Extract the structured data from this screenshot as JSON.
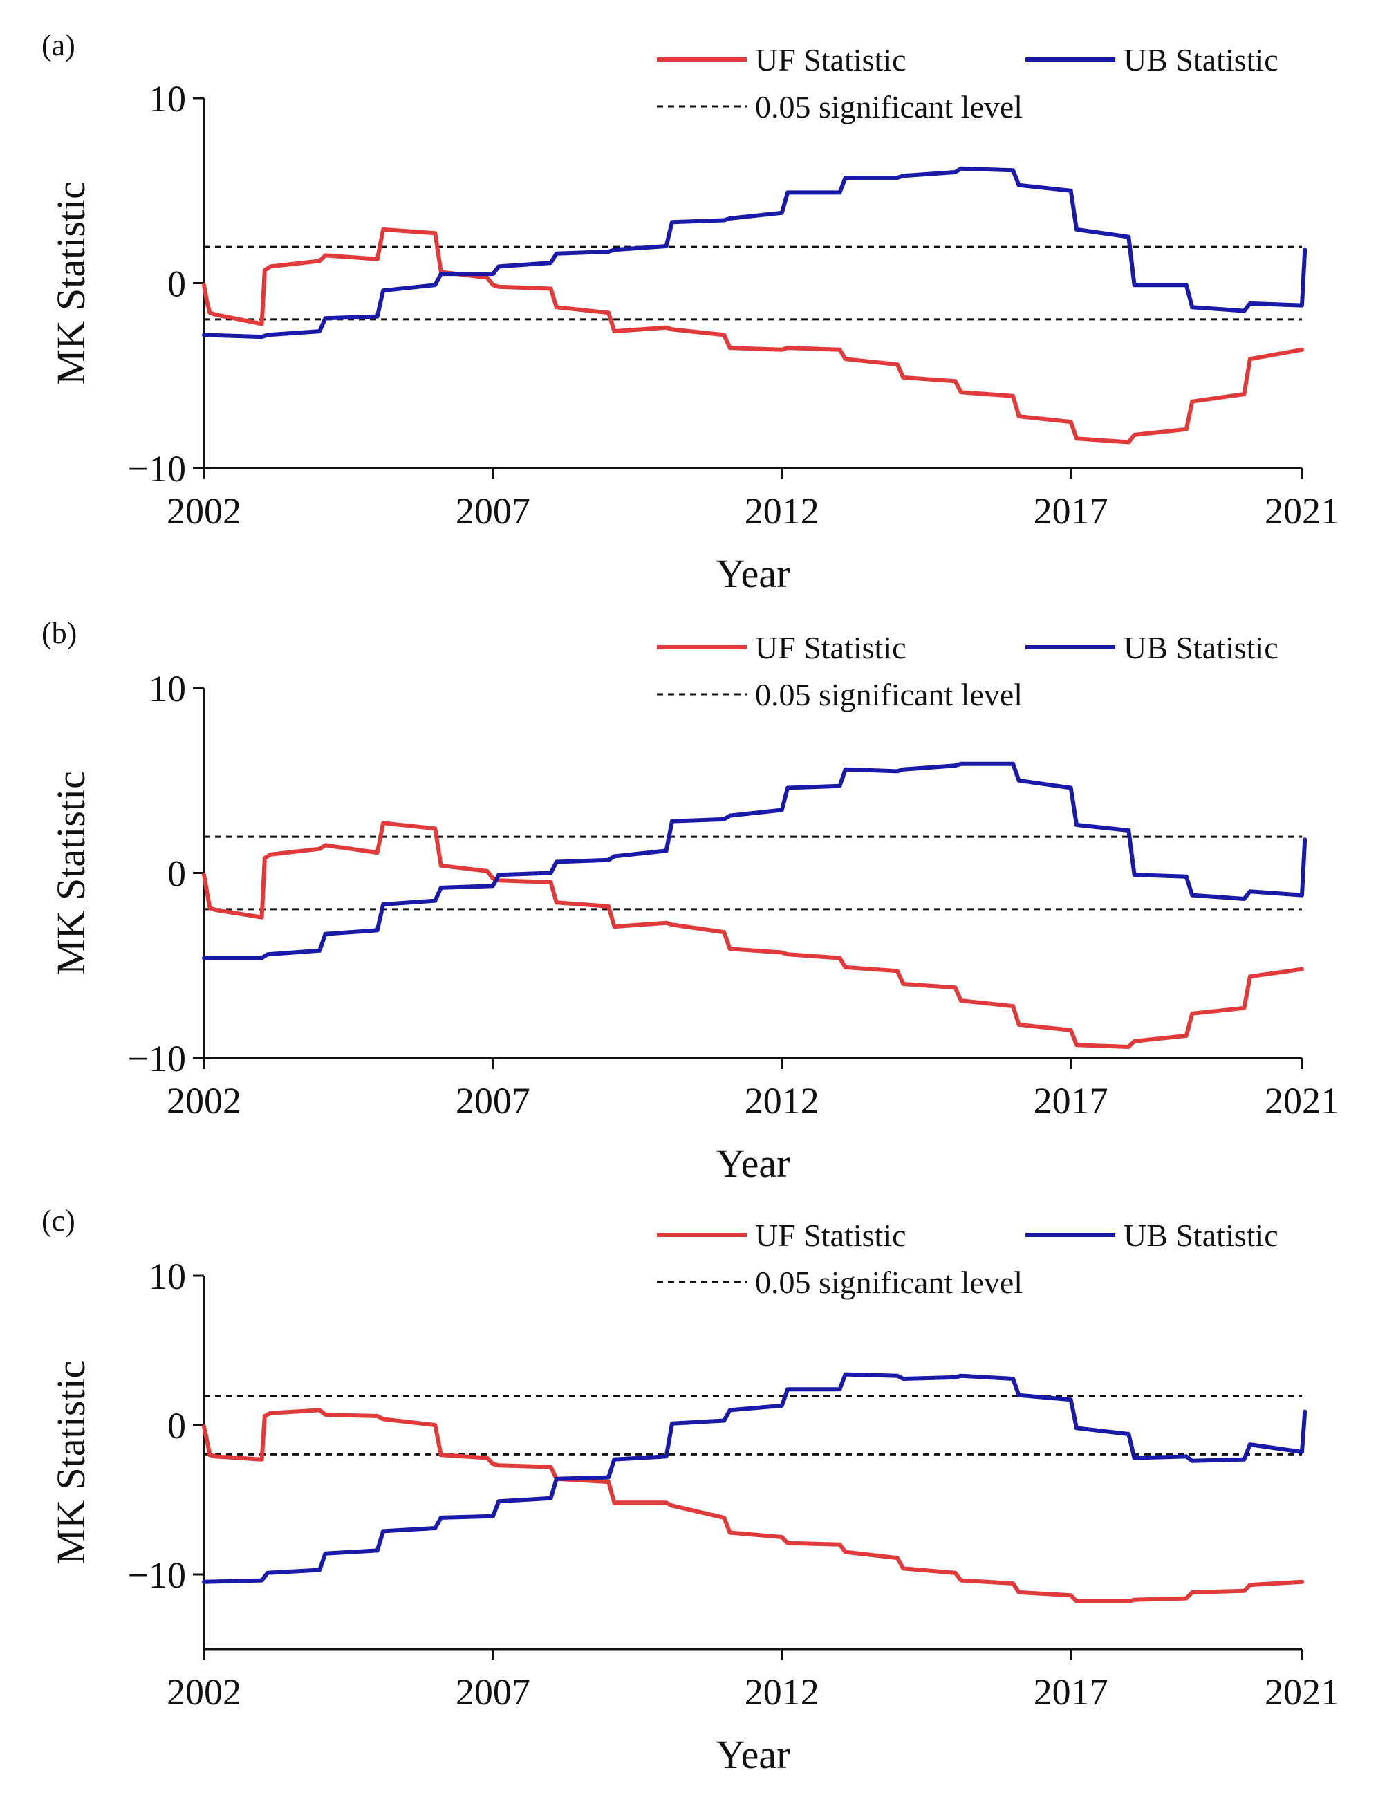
{
  "colors": {
    "uf": "#e03a3a",
    "ub": "#1a1aa8",
    "axis": "#111111"
  },
  "legend": {
    "uf_label": "UF Statistic",
    "ub_label": "UB Statistic",
    "sig_label": "0.05 significant level"
  },
  "chart_data": [
    {
      "type": "line",
      "panel_label": "(a)",
      "xlabel": "Year",
      "ylabel": "MK Statistic",
      "xlim": [
        2002,
        2021
      ],
      "ylim": [
        -10,
        10
      ],
      "xticks": [
        2002,
        2007,
        2012,
        2017,
        2021
      ],
      "yticks": [
        10,
        0,
        -10
      ],
      "ytick_labels": [
        "10",
        "0",
        "−10"
      ],
      "significance_levels": [
        1.96,
        -1.96
      ],
      "series": [
        {
          "name": "UF Statistic",
          "color": "#e03a3a",
          "x": [
            2002,
            2002.05,
            2002.1,
            2002.2,
            2003,
            2003.05,
            2003.15,
            2004,
            2004.1,
            2005,
            2005.1,
            2006,
            2006.1,
            2006.9,
            2007,
            2007.1,
            2008,
            2008.1,
            2009,
            2009.1,
            2010,
            2010.1,
            2011,
            2011.1,
            2012,
            2012.1,
            2013,
            2013.1,
            2014,
            2014.1,
            2015,
            2015.1,
            2016,
            2016.1,
            2017,
            2017.1,
            2018,
            2018.1,
            2019,
            2019.1,
            2020,
            2020.1,
            2021
          ],
          "y": [
            -0.1,
            -1.0,
            -1.6,
            -1.7,
            -2.2,
            0.7,
            0.9,
            1.2,
            1.5,
            1.3,
            2.9,
            2.7,
            0.6,
            0.3,
            -0.1,
            -0.2,
            -0.3,
            -1.3,
            -1.6,
            -2.6,
            -2.4,
            -2.5,
            -2.8,
            -3.5,
            -3.6,
            -3.5,
            -3.6,
            -4.1,
            -4.4,
            -5.1,
            -5.3,
            -5.9,
            -6.1,
            -7.2,
            -7.5,
            -8.4,
            -8.6,
            -8.2,
            -7.9,
            -6.4,
            -6.0,
            -4.1,
            -3.6
          ]
        },
        {
          "name": "UB Statistic",
          "color": "#1a1aa8",
          "x": [
            2002,
            2003,
            2003.1,
            2004,
            2004.1,
            2005,
            2005.1,
            2006,
            2006.1,
            2007,
            2007.1,
            2008,
            2008.1,
            2009,
            2009.1,
            2010,
            2010.1,
            2011,
            2011.1,
            2012,
            2012.1,
            2013,
            2013.1,
            2014,
            2014.1,
            2015,
            2015.1,
            2016,
            2016.1,
            2017,
            2017.1,
            2018,
            2018.1,
            2019,
            2019.1,
            2020,
            2020.1,
            2021,
            2021.05
          ],
          "y": [
            -2.8,
            -2.9,
            -2.8,
            -2.6,
            -1.9,
            -1.8,
            -0.4,
            -0.1,
            0.5,
            0.5,
            0.9,
            1.1,
            1.6,
            1.7,
            1.8,
            2.0,
            3.3,
            3.4,
            3.5,
            3.8,
            4.9,
            4.9,
            5.7,
            5.7,
            5.8,
            6.0,
            6.2,
            6.1,
            5.3,
            5.0,
            2.9,
            2.5,
            -0.1,
            -0.1,
            -1.3,
            -1.5,
            -1.1,
            -1.2,
            1.8
          ]
        }
      ]
    },
    {
      "type": "line",
      "panel_label": "(b)",
      "xlabel": "Year",
      "ylabel": "MK Statistic",
      "xlim": [
        2002,
        2021
      ],
      "ylim": [
        -10,
        10
      ],
      "xticks": [
        2002,
        2007,
        2012,
        2017,
        2021
      ],
      "yticks": [
        10,
        0,
        -10
      ],
      "ytick_labels": [
        "10",
        "0",
        "−10"
      ],
      "significance_levels": [
        1.96,
        -1.96
      ],
      "series": [
        {
          "name": "UF Statistic",
          "color": "#e03a3a",
          "x": [
            2002,
            2002.05,
            2002.1,
            2002.2,
            2003,
            2003.05,
            2003.15,
            2004,
            2004.1,
            2005,
            2005.1,
            2006,
            2006.1,
            2006.9,
            2007,
            2007.1,
            2008,
            2008.1,
            2009,
            2009.1,
            2010,
            2010.1,
            2011,
            2011.1,
            2012,
            2012.1,
            2013,
            2013.1,
            2014,
            2014.1,
            2015,
            2015.1,
            2016,
            2016.1,
            2017,
            2017.1,
            2018,
            2018.1,
            2019,
            2019.1,
            2020,
            2020.1,
            2021
          ],
          "y": [
            -0.1,
            -1.0,
            -1.9,
            -2.0,
            -2.4,
            0.8,
            1.0,
            1.3,
            1.5,
            1.1,
            2.7,
            2.4,
            0.4,
            0.1,
            -0.3,
            -0.4,
            -0.5,
            -1.6,
            -1.8,
            -2.9,
            -2.7,
            -2.8,
            -3.2,
            -4.1,
            -4.3,
            -4.4,
            -4.6,
            -5.1,
            -5.3,
            -6.0,
            -6.2,
            -6.9,
            -7.2,
            -8.2,
            -8.5,
            -9.3,
            -9.4,
            -9.1,
            -8.8,
            -7.6,
            -7.3,
            -5.6,
            -5.2
          ]
        },
        {
          "name": "UB Statistic",
          "color": "#1a1aa8",
          "x": [
            2002,
            2003,
            2003.1,
            2004,
            2004.1,
            2005,
            2005.1,
            2006,
            2006.1,
            2007,
            2007.1,
            2008,
            2008.1,
            2009,
            2009.1,
            2010,
            2010.1,
            2011,
            2011.1,
            2012,
            2012.1,
            2013,
            2013.1,
            2014,
            2014.1,
            2015,
            2015.1,
            2016,
            2016.1,
            2017,
            2017.1,
            2018,
            2018.1,
            2019,
            2019.1,
            2020,
            2020.1,
            2021,
            2021.05
          ],
          "y": [
            -4.6,
            -4.6,
            -4.4,
            -4.2,
            -3.3,
            -3.1,
            -1.7,
            -1.5,
            -0.8,
            -0.7,
            -0.1,
            0.0,
            0.6,
            0.7,
            0.9,
            1.2,
            2.8,
            2.9,
            3.1,
            3.4,
            4.6,
            4.7,
            5.6,
            5.5,
            5.6,
            5.8,
            5.9,
            5.9,
            5.0,
            4.6,
            2.6,
            2.3,
            -0.1,
            -0.2,
            -1.2,
            -1.4,
            -1.0,
            -1.2,
            1.8
          ]
        }
      ]
    },
    {
      "type": "line",
      "panel_label": "(c)",
      "xlabel": "Year",
      "ylabel": "MK Statistic",
      "xlim": [
        2002,
        2021
      ],
      "ylim": [
        -15,
        10
      ],
      "xticks": [
        2002,
        2007,
        2012,
        2017,
        2021
      ],
      "yticks": [
        10,
        0,
        -10
      ],
      "ytick_labels": [
        "10",
        "0",
        "−10"
      ],
      "significance_levels": [
        1.96,
        -1.96
      ],
      "series": [
        {
          "name": "UF Statistic",
          "color": "#e03a3a",
          "x": [
            2002,
            2002.05,
            2002.1,
            2002.2,
            2003,
            2003.05,
            2003.15,
            2004,
            2004.1,
            2005,
            2005.1,
            2006,
            2006.1,
            2006.9,
            2007,
            2007.1,
            2008,
            2008.1,
            2009,
            2009.1,
            2010,
            2010.1,
            2011,
            2011.1,
            2012,
            2012.1,
            2013,
            2013.1,
            2014,
            2014.1,
            2015,
            2015.1,
            2016,
            2016.1,
            2017,
            2017.1,
            2018,
            2018.1,
            2019,
            2019.1,
            2020,
            2020.1,
            2021
          ],
          "y": [
            -0.1,
            -1.0,
            -2.0,
            -2.1,
            -2.3,
            0.6,
            0.8,
            1.0,
            0.7,
            0.6,
            0.4,
            0.0,
            -2.0,
            -2.2,
            -2.6,
            -2.7,
            -2.8,
            -3.6,
            -3.8,
            -5.2,
            -5.2,
            -5.4,
            -6.2,
            -7.2,
            -7.5,
            -7.9,
            -8.0,
            -8.5,
            -8.9,
            -9.6,
            -9.9,
            -10.4,
            -10.6,
            -11.2,
            -11.4,
            -11.8,
            -11.8,
            -11.7,
            -11.6,
            -11.2,
            -11.1,
            -10.7,
            -10.5
          ]
        },
        {
          "name": "UB Statistic",
          "color": "#1a1aa8",
          "x": [
            2002,
            2003,
            2003.1,
            2004,
            2004.1,
            2005,
            2005.1,
            2006,
            2006.1,
            2007,
            2007.1,
            2008,
            2008.1,
            2009,
            2009.1,
            2010,
            2010.1,
            2011,
            2011.1,
            2012,
            2012.1,
            2013,
            2013.1,
            2014,
            2014.1,
            2015,
            2015.1,
            2016,
            2016.1,
            2017,
            2017.1,
            2018,
            2018.1,
            2019,
            2019.1,
            2020,
            2020.1,
            2021,
            2021.05
          ],
          "y": [
            -10.5,
            -10.4,
            -9.9,
            -9.7,
            -8.6,
            -8.4,
            -7.1,
            -6.9,
            -6.2,
            -6.1,
            -5.1,
            -4.9,
            -3.6,
            -3.5,
            -2.3,
            -2.1,
            0.1,
            0.3,
            1.0,
            1.3,
            2.4,
            2.4,
            3.4,
            3.3,
            3.1,
            3.2,
            3.3,
            3.1,
            2.0,
            1.7,
            -0.2,
            -0.6,
            -2.2,
            -2.1,
            -2.4,
            -2.3,
            -1.3,
            -1.8,
            0.9
          ]
        }
      ]
    }
  ]
}
